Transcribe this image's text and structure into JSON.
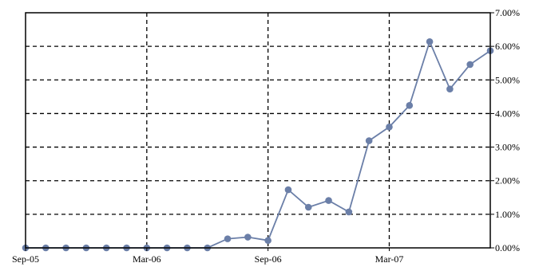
{
  "chart_data": {
    "type": "line",
    "title": "",
    "xlabel": "",
    "ylabel": "",
    "x_ticks": [
      "Sep-05",
      "Mar-06",
      "Sep-06",
      "Mar-07"
    ],
    "y_ticks": [
      "0.00%",
      "1.00%",
      "2.00%",
      "3.00%",
      "4.00%",
      "5.00%",
      "6.00%",
      "7.00%"
    ],
    "ylim": [
      0,
      7
    ],
    "y_unit": "%",
    "y_axis_side": "right",
    "grid": "dashed, major ticks",
    "series": [
      {
        "color": "#6b7fa8",
        "marker": "circle",
        "x": [
          "Sep-05",
          "Oct-05",
          "Nov-05",
          "Dec-05",
          "Jan-06",
          "Feb-06",
          "Mar-06",
          "Apr-06",
          "May-06",
          "Jun-06",
          "Jul-06",
          "Aug-06",
          "Sep-06",
          "Oct-06",
          "Nov-06",
          "Dec-06",
          "Jan-07",
          "Feb-07",
          "Mar-07",
          "Apr-07",
          "May-07",
          "Jun-07",
          "Jul-07",
          "Aug-07"
        ],
        "values": [
          0,
          0,
          0,
          0,
          0,
          0,
          0,
          0,
          0,
          0,
          0.27,
          0.32,
          0.22,
          1.73,
          1.21,
          1.41,
          1.07,
          3.19,
          3.6,
          4.24,
          6.14,
          4.73,
          5.46,
          5.87
        ]
      }
    ]
  }
}
